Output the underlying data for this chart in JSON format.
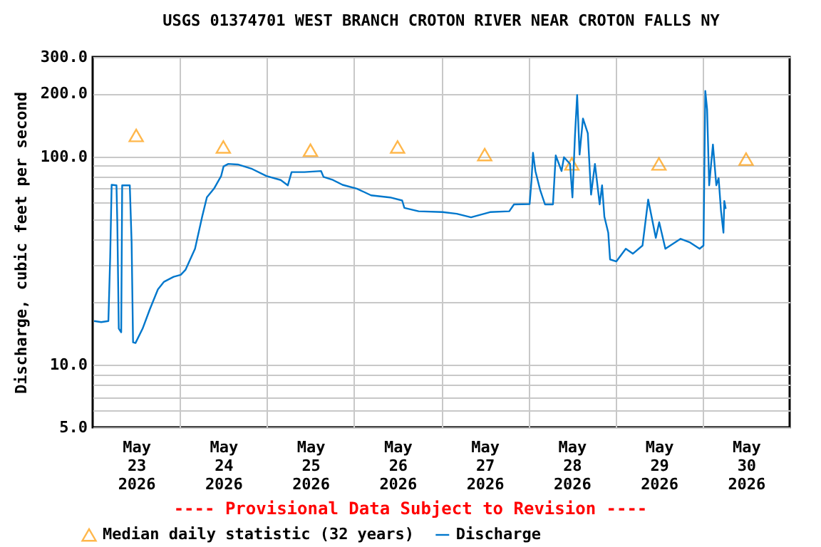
{
  "chart_data": {
    "type": "line",
    "title": "USGS 01374701 WEST BRANCH CROTON RIVER NEAR CROTON FALLS NY",
    "ylabel": "Discharge, cubic feet per second",
    "annotations": [
      "---- Provisional Data Subject to Revision ----"
    ],
    "xlim": [
      "2026-05-23T00:00",
      "2026-05-31T00:00"
    ],
    "xticks": [
      {
        "value": "2026-05-23T12:00",
        "label": "May 23 2026"
      },
      {
        "value": "2026-05-24T12:00",
        "label": "May 24 2026"
      },
      {
        "value": "2026-05-25T12:00",
        "label": "May 25 2026"
      },
      {
        "value": "2026-05-26T12:00",
        "label": "May 26 2026"
      },
      {
        "value": "2026-05-27T12:00",
        "label": "May 27 2026"
      },
      {
        "value": "2026-05-28T12:00",
        "label": "May 28 2026"
      },
      {
        "value": "2026-05-29T12:00",
        "label": "May 29 2026"
      },
      {
        "value": "2026-05-30T12:00",
        "label": "May 30 2026"
      },
      {
        "value": "2026-05-24T00:00",
        "label": null
      },
      {
        "value": "2026-05-25T00:00",
        "label": null
      },
      {
        "value": "2026-05-26T00:00",
        "label": null
      },
      {
        "value": "2026-05-27T00:00",
        "label": null
      },
      {
        "value": "2026-05-28T00:00",
        "label": null
      },
      {
        "value": "2026-05-29T00:00",
        "label": null
      },
      {
        "value": "2026-05-30T00:00",
        "label": null
      }
    ],
    "ylim": [
      5,
      300
    ],
    "yticks": [
      {
        "value": 5,
        "label": "5.0"
      },
      {
        "value": 6,
        "label": null
      },
      {
        "value": 7,
        "label": null
      },
      {
        "value": 8,
        "label": null
      },
      {
        "value": 9,
        "label": null
      },
      {
        "value": 10,
        "label": "10.0"
      },
      {
        "value": 20,
        "label": null
      },
      {
        "value": 30,
        "label": null
      },
      {
        "value": 40,
        "label": null
      },
      {
        "value": 50,
        "label": null
      },
      {
        "value": 60,
        "label": null
      },
      {
        "value": 70,
        "label": null
      },
      {
        "value": 80,
        "label": null
      },
      {
        "value": 90,
        "label": null
      },
      {
        "value": 100,
        "label": "100.0"
      },
      {
        "value": 200,
        "label": "200.0"
      },
      {
        "value": 300,
        "label": "300.0"
      }
    ],
    "log": "y",
    "grid": true,
    "legend": "bottom",
    "series": [
      {
        "name": "Median daily statistic (32 years)",
        "type": "scatter",
        "marker": "triangle",
        "color": "#ff9900",
        "x": [
          "2026-05-23T12:00",
          "2026-05-24T12:00",
          "2026-05-25T12:00",
          "2026-05-26T12:00",
          "2026-05-27T12:00",
          "2026-05-28T12:00",
          "2026-05-29T12:00",
          "2026-05-30T12:00"
        ],
        "values": [
          126,
          111,
          107,
          111,
          102,
          92,
          92,
          97
        ]
      },
      {
        "name": "Discharge",
        "type": "line",
        "color": "#0077cc",
        "x": [
          "2026-05-23T00:24",
          "2026-05-23T02:22",
          "2026-05-23T04:20",
          "2026-05-23T04:50",
          "2026-05-23T05:14",
          "2026-05-23T06:34",
          "2026-05-23T06:48",
          "2026-05-23T07:12",
          "2026-05-23T07:52",
          "2026-05-23T08:08",
          "2026-05-23T10:14",
          "2026-05-23T10:44",
          "2026-05-23T11:08",
          "2026-05-23T11:48",
          "2026-05-23T13:46",
          "2026-05-23T15:44",
          "2026-05-23T17:59",
          "2026-05-23T19:40",
          "2026-05-23T22:18",
          "2026-05-24T00:16",
          "2026-05-24T01:34",
          "2026-05-24T04:12",
          "2026-05-24T06:10",
          "2026-05-24T07:28",
          "2026-05-24T09:26",
          "2026-05-24T11:24",
          "2026-05-24T12:04",
          "2026-05-24T13:22",
          "2026-05-24T16:00",
          "2026-05-24T19:56",
          "2026-05-24T23:52",
          "2026-05-25T03:48",
          "2026-05-25T05:46",
          "2026-05-25T06:48",
          "2026-05-25T10:20",
          "2026-05-25T14:56",
          "2026-05-25T15:36",
          "2026-05-25T18:12",
          "2026-05-25T20:50",
          "2026-05-26T00:46",
          "2026-05-26T04:42",
          "2026-05-26T09:56",
          "2026-05-26T13:16",
          "2026-05-26T13:52",
          "2026-05-26T17:48",
          "2026-05-27T00:22",
          "2026-05-27T04:18",
          "2026-05-27T08:14",
          "2026-05-27T13:28",
          "2026-05-27T18:46",
          "2026-05-27T20:04",
          "2026-05-28T00:22",
          "2026-05-28T00:54",
          "2026-05-28T01:18",
          "2026-05-28T01:58",
          "2026-05-28T03:16",
          "2026-05-28T04:36",
          "2026-05-28T06:48",
          "2026-05-28T07:34",
          "2026-05-28T09:10",
          "2026-05-28T09:50",
          "2026-05-28T11:30",
          "2026-05-28T12:10",
          "2026-05-28T12:52",
          "2026-05-28T13:28",
          "2026-05-28T14:08",
          "2026-05-28T15:04",
          "2026-05-28T16:24",
          "2026-05-28T17:18",
          "2026-05-28T18:22",
          "2026-05-28T19:40",
          "2026-05-28T20:20",
          "2026-05-28T20:58",
          "2026-05-28T22:02",
          "2026-05-28T22:32",
          "2026-05-29T00:16",
          "2026-05-29T02:52",
          "2026-05-29T04:50",
          "2026-05-29T07:28",
          "2026-05-29T09:02",
          "2026-05-29T10:06",
          "2026-05-29T11:08",
          "2026-05-29T12:04",
          "2026-05-29T13:46",
          "2026-05-29T17:58",
          "2026-05-29T20:34",
          "2026-05-29T23:12",
          "2026-05-30T00:16",
          "2026-05-30T00:46",
          "2026-05-30T01:16",
          "2026-05-30T01:50",
          "2026-05-30T02:52",
          "2026-05-30T03:48",
          "2026-05-30T04:26",
          "2026-05-30T05:06",
          "2026-05-30T05:46",
          "2026-05-30T06:00",
          "2026-05-30T06:24"
        ],
        "values": [
          16.2,
          16.0,
          16.2,
          32.9,
          73,
          72.6,
          47.5,
          14.9,
          14.3,
          72.6,
          72.6,
          38.6,
          12.8,
          12.7,
          14.9,
          18.4,
          23,
          25,
          26.4,
          27,
          28.5,
          36,
          51.3,
          63.6,
          70,
          80.5,
          89.5,
          92,
          91.4,
          87,
          80.5,
          77,
          72.6,
          84,
          84,
          85,
          79.7,
          77,
          73,
          70,
          65,
          63.5,
          61.4,
          56.6,
          54.5,
          54,
          53,
          51,
          54,
          54.5,
          58.8,
          59,
          77,
          104,
          85,
          69,
          58.8,
          58.8,
          101,
          85,
          99,
          92,
          63.5,
          126,
          197,
          102,
          152,
          129,
          65.5,
          92,
          58.8,
          72.6,
          51.3,
          43,
          32,
          31.3,
          36,
          34.1,
          37.3,
          62,
          50,
          40.6,
          48.3,
          36,
          40.2,
          38.6,
          36,
          37.3,
          206,
          168,
          72.6,
          114,
          72.6,
          78.6,
          54.5,
          43,
          61,
          56
        ]
      }
    ]
  }
}
